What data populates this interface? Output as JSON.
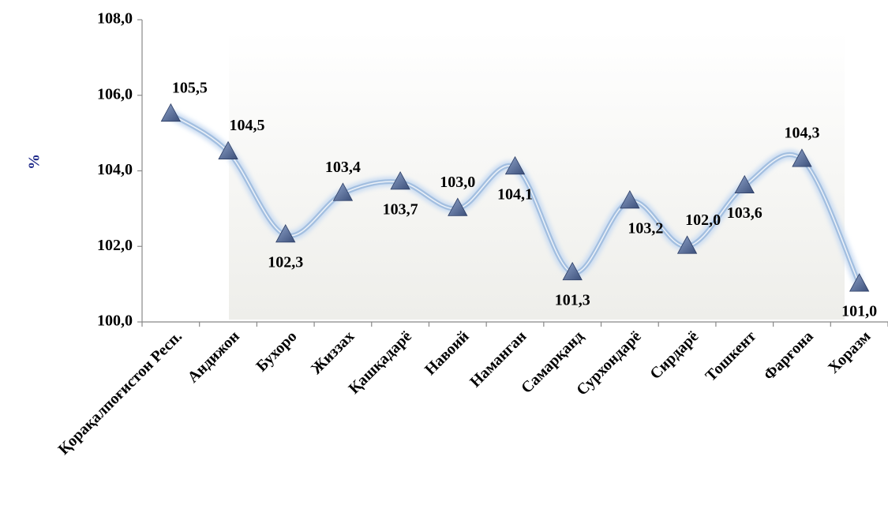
{
  "chart_data": {
    "type": "line",
    "y_label": "%",
    "categories": [
      "Қорақалпоғистон Респ.",
      "Андижон",
      "Бухоро",
      "Жиззах",
      "Қашқадарё",
      "Навоий",
      "Наманган",
      "Самарқанд",
      "Сурхондарё",
      "Сирдарё",
      "Тошкент",
      "Фарғона",
      "Хоразм"
    ],
    "series": [
      {
        "name": "%",
        "color": "#a3bfe0",
        "values": [
          105.5,
          104.5,
          102.3,
          103.4,
          103.7,
          103.0,
          104.1,
          101.3,
          103.2,
          102.0,
          103.6,
          104.3,
          101.0
        ],
        "value_labels": [
          "105,5",
          "104,5",
          "102,3",
          "103,4",
          "103,7",
          "103,0",
          "104,1",
          "101,3",
          "103,2",
          "102,0",
          "103,6",
          "104,3",
          "101,0"
        ]
      }
    ],
    "ylim": [
      100,
      108
    ],
    "yticks": [
      {
        "value": 100,
        "label": "100,0"
      },
      {
        "value": 102,
        "label": "102,0"
      },
      {
        "value": 104,
        "label": "104,0"
      },
      {
        "value": 106,
        "label": "106,0"
      },
      {
        "value": 108,
        "label": "108,0"
      }
    ],
    "grid": false
  }
}
